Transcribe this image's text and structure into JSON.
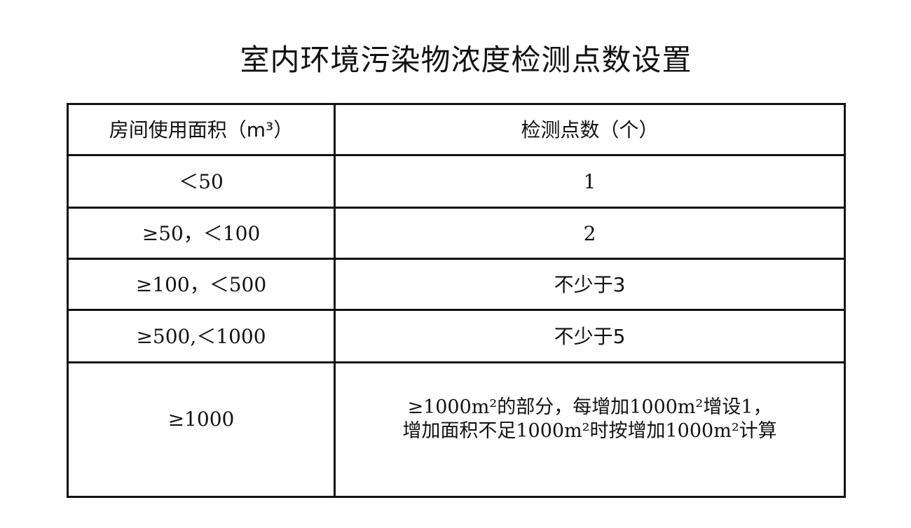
{
  "title": "室内环境污染物浓度检测点数设置",
  "table": {
    "headers": [
      "房间使用面积（m³）",
      "检测点数（个）"
    ],
    "rows": [
      [
        "＜50",
        "1"
      ],
      [
        "≥50，＜100",
        "2"
      ],
      [
        "≥100，＜500",
        "不少于3"
      ],
      [
        "≥500,＜1000",
        "不少于5"
      ],
      [
        "≥1000",
        [
          "≥1000m²的部分，每增加1000m²增设1，",
          "增加面积不足1000m²时按增加1000m²计算"
        ]
      ]
    ]
  }
}
